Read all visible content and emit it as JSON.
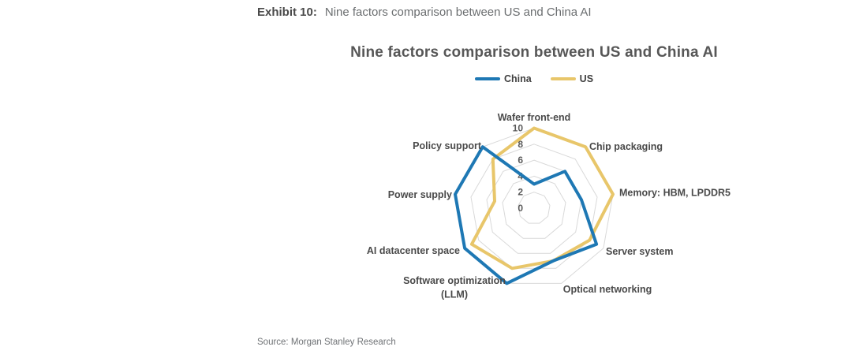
{
  "page": {
    "exhibit_label": "Exhibit 10:",
    "exhibit_title": "Nine factors comparison between US and China AI",
    "source": "Source: Morgan Stanley Research"
  },
  "chart_data": {
    "type": "radar",
    "title": "Nine factors comparison between US and China AI",
    "categories": [
      "Wafer front-end",
      "Chip packaging",
      "Memory: HBM, LPDDR5",
      "Server system",
      "Optical networking",
      "Software optimization (LLM)",
      "AI datacenter space",
      "Power supply",
      "Policy support"
    ],
    "series": [
      {
        "name": "China",
        "color": "#1E78B4",
        "values": [
          3,
          6,
          6,
          9,
          7,
          10,
          10,
          10,
          10
        ]
      },
      {
        "name": "US",
        "color": "#E8C66A",
        "values": [
          10,
          10,
          10,
          8,
          7,
          8,
          9,
          5,
          8
        ]
      }
    ],
    "ticks": [
      0,
      2,
      4,
      6,
      8,
      10
    ],
    "axis_range": [
      0,
      10
    ],
    "grid": "concentric-rings-only",
    "grid_color": "#D9D9D9",
    "legend_position": "top",
    "label_color": "#4a4a4a",
    "tick_label_color": "#595959"
  }
}
